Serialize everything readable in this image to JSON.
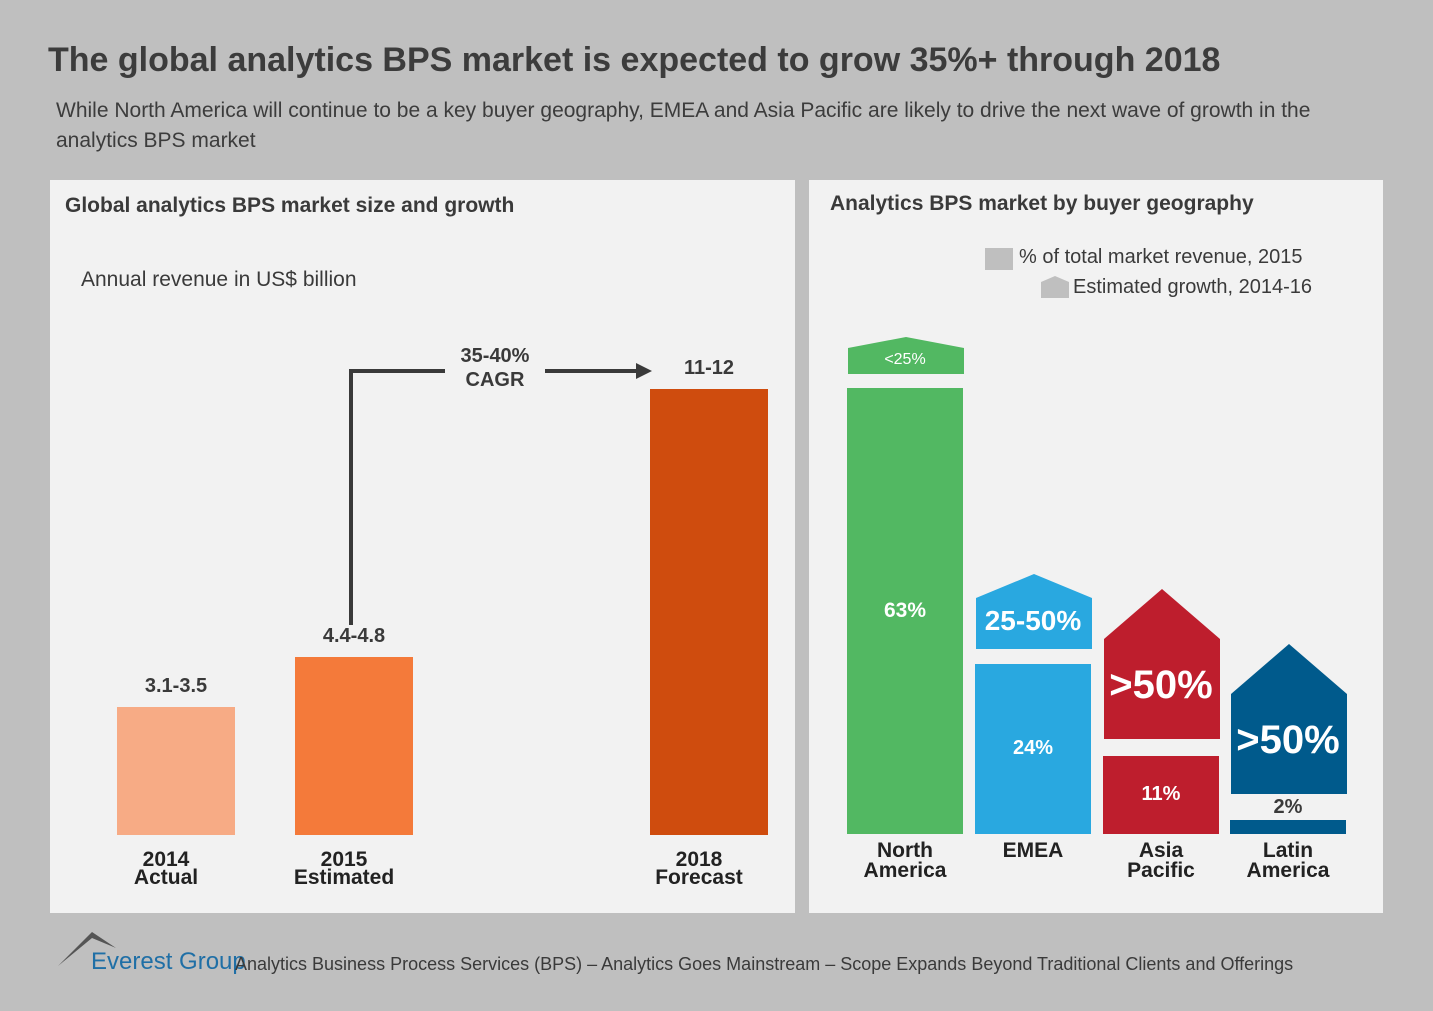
{
  "title": "The global analytics BPS market is expected to grow 35%+ through 2018",
  "subtitle": "While North America will continue to be a key buyer geography, EMEA and Asia Pacific are likely to drive the next wave of growth in the analytics BPS market",
  "chart_data": [
    {
      "type": "bar",
      "title": "Global analytics BPS market size and growth",
      "ylabel": "Annual revenue in US$ billion",
      "categories": [
        "2014 Actual",
        "2015 Estimated",
        "2018 Forecast"
      ],
      "cat_lines": [
        [
          "2014",
          "Actual"
        ],
        [
          "2015",
          "Estimated"
        ],
        [
          "2018",
          "Forecast"
        ]
      ],
      "ranges": [
        [
          3.1,
          3.5
        ],
        [
          4.4,
          4.8
        ],
        [
          11,
          12
        ]
      ],
      "labels": [
        "3.1-3.5",
        "4.4-4.8",
        "11-12"
      ],
      "colors": [
        "#f7ab85",
        "#f47a3a",
        "#cf4c0e"
      ],
      "annotation": {
        "line1": "35-40%",
        "line2": "CAGR",
        "from": "2015 Estimated",
        "to": "2018 Forecast"
      }
    },
    {
      "type": "bar",
      "title": "Analytics BPS market by buyer geography",
      "categories": [
        "North America",
        "EMEA",
        "Asia Pacific",
        "Latin America"
      ],
      "cat_lines": [
        [
          "North",
          "America"
        ],
        [
          "EMEA"
        ],
        [
          "Asia",
          "Pacific"
        ],
        [
          "Latin",
          "America"
        ]
      ],
      "series": [
        {
          "name": "% of total market  revenue, 2015",
          "values": [
            63,
            24,
            11,
            2
          ],
          "labels": [
            "63%",
            "24%",
            "11%",
            "2%"
          ]
        },
        {
          "name": "Estimated growth, 2014-16",
          "labels": [
            "<25%",
            "25-50%",
            ">50%",
            ">50%"
          ]
        }
      ],
      "colors": [
        "#52b862",
        "#29a8e0",
        "#be1e2d",
        "#005a8c"
      ],
      "legend_color": "#bfbfbf",
      "legend": "top-right"
    }
  ],
  "footer": {
    "logo": "Everest Group",
    "text": "Analytics Business Process Services (BPS) – Analytics Goes Mainstream – Scope Expands Beyond Traditional Clients and Offerings"
  }
}
